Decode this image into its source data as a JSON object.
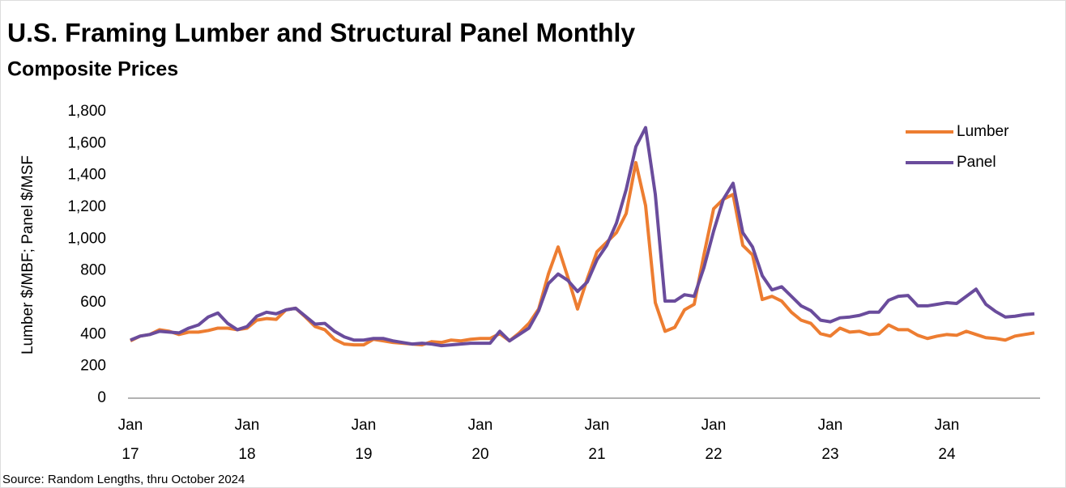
{
  "chart_data": {
    "type": "line",
    "title": "U.S. Framing Lumber and Structural Panel Monthly",
    "subtitle": "Composite Prices",
    "ylabel": "Lumber $/MBF; Panel $/MSF",
    "source": "Source: Random Lengths, thru October 2024",
    "categories": [
      "Jan 17",
      null,
      null,
      null,
      null,
      null,
      null,
      null,
      null,
      null,
      null,
      null,
      "Jan 18",
      null,
      null,
      null,
      null,
      null,
      null,
      null,
      null,
      null,
      null,
      null,
      "Jan 19",
      null,
      null,
      null,
      null,
      null,
      null,
      null,
      null,
      null,
      null,
      null,
      "Jan 20",
      null,
      null,
      null,
      null,
      null,
      null,
      null,
      null,
      null,
      null,
      null,
      "Jan 21",
      null,
      null,
      null,
      null,
      null,
      null,
      null,
      null,
      null,
      null,
      null,
      "Jan 22",
      null,
      null,
      null,
      null,
      null,
      null,
      null,
      null,
      null,
      null,
      null,
      "Jan 23",
      null,
      null,
      null,
      null,
      null,
      null,
      null,
      null,
      null,
      null,
      null,
      "Jan 24",
      null,
      null,
      null,
      null,
      null,
      null,
      null,
      null,
      null
    ],
    "series": [
      {
        "name": "Lumber",
        "color": "#ed7d31",
        "values": [
          360,
          390,
          400,
          430,
          420,
          400,
          415,
          415,
          425,
          440,
          440,
          430,
          440,
          490,
          500,
          495,
          555,
          565,
          510,
          450,
          430,
          370,
          340,
          335,
          335,
          370,
          360,
          350,
          345,
          340,
          335,
          355,
          350,
          365,
          360,
          370,
          375,
          375,
          405,
          360,
          410,
          470,
          560,
          780,
          950,
          760,
          560,
          750,
          920,
          980,
          1040,
          1160,
          1480,
          1210,
          600,
          420,
          445,
          555,
          590,
          900,
          1190,
          1250,
          1280,
          960,
          900,
          620,
          640,
          610,
          540,
          490,
          470,
          405,
          390,
          440,
          415,
          420,
          400,
          405,
          460,
          430,
          430,
          395,
          375,
          390,
          400,
          395,
          420,
          400,
          380,
          375,
          365,
          390,
          400,
          410
        ]
      },
      {
        "name": "Panel",
        "color": "#6a4c9c",
        "values": [
          365,
          390,
          400,
          420,
          415,
          410,
          440,
          460,
          510,
          535,
          470,
          430,
          450,
          515,
          540,
          530,
          555,
          565,
          515,
          465,
          470,
          420,
          385,
          365,
          365,
          375,
          375,
          360,
          350,
          340,
          345,
          340,
          330,
          335,
          340,
          345,
          345,
          345,
          420,
          360,
          400,
          440,
          550,
          720,
          780,
          740,
          670,
          730,
          870,
          960,
          1100,
          1310,
          1580,
          1700,
          1280,
          610,
          610,
          650,
          640,
          820,
          1050,
          1250,
          1350,
          1040,
          950,
          770,
          680,
          700,
          640,
          580,
          550,
          490,
          480,
          505,
          510,
          520,
          540,
          540,
          615,
          640,
          645,
          580,
          580,
          590,
          600,
          595,
          640,
          685,
          590,
          545,
          510,
          515,
          525,
          530
        ]
      }
    ],
    "ylim": [
      0,
      1800
    ],
    "yticks": [
      0,
      200,
      400,
      600,
      800,
      {
        "value": 1000,
        "label": "1,000"
      },
      {
        "value": 1200,
        "label": "1,200"
      },
      {
        "value": 1400,
        "label": "1,400"
      },
      {
        "value": 1600,
        "label": "1,600"
      },
      {
        "value": 1800,
        "label": "1,800"
      }
    ],
    "grid": false,
    "legend": "upper right"
  }
}
